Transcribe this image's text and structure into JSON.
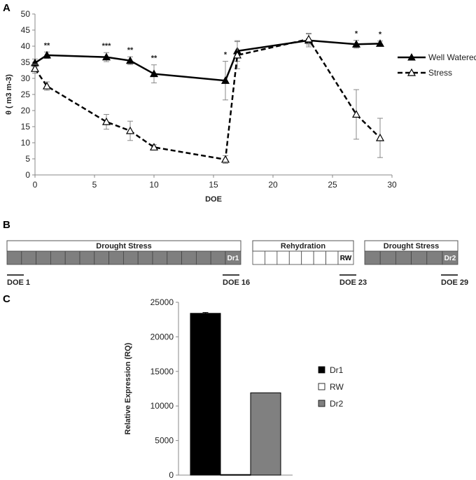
{
  "panel_labels": [
    "A",
    "B",
    "C"
  ],
  "chart_data": [
    {
      "type": "line",
      "panel": "A",
      "xlabel": "DOE",
      "ylabel": "θ ( m3 m-3)",
      "xlim": [
        0,
        30
      ],
      "ylim": [
        0,
        50
      ],
      "x_ticks": [
        0,
        5,
        10,
        15,
        20,
        25,
        30
      ],
      "y_ticks": [
        0,
        5,
        10,
        15,
        20,
        25,
        30,
        35,
        40,
        45,
        50
      ],
      "legend_position": "right",
      "series": [
        {
          "name": "Well Watered",
          "style": "solid-filled-triangle",
          "x": [
            0,
            1,
            6,
            8,
            10,
            16,
            17,
            23,
            27,
            29
          ],
          "y": [
            34.8,
            37.2,
            36.6,
            35.5,
            31.4,
            29.3,
            38.5,
            41.8,
            40.6,
            40.8
          ],
          "err": [
            1.2,
            1.0,
            1.4,
            1.2,
            2.8,
            6.0,
            3.2,
            2.0,
            1.2,
            0.8
          ]
        },
        {
          "name": "Stress",
          "style": "dashed-open-triangle",
          "x": [
            0,
            1,
            6,
            8,
            10,
            16,
            17,
            23,
            27,
            29
          ],
          "y": [
            33.0,
            27.6,
            16.5,
            13.7,
            8.6,
            4.8,
            37.2,
            42.2,
            18.8,
            11.5
          ],
          "err": [
            1.4,
            1.3,
            2.3,
            3.0,
            0.8,
            1.2,
            4.2,
            1.8,
            7.7,
            6.1
          ]
        }
      ],
      "annotations": [
        {
          "x": 1,
          "y": 37.2,
          "err": 1.0,
          "text": "**"
        },
        {
          "x": 6,
          "y": 36.6,
          "err": 1.4,
          "text": "***"
        },
        {
          "x": 8,
          "y": 35.5,
          "err": 1.2,
          "text": "**"
        },
        {
          "x": 10,
          "y": 31.4,
          "err": 2.8,
          "text": "**"
        },
        {
          "x": 16,
          "y": 29.3,
          "err": 6.0,
          "text": "*"
        },
        {
          "x": 27,
          "y": 40.6,
          "err": 1.2,
          "text": "*"
        },
        {
          "x": 29,
          "y": 40.8,
          "err": 0.8,
          "text": "*"
        }
      ]
    },
    {
      "type": "bar",
      "panel": "C",
      "title": "",
      "xlabel": "",
      "ylabel": "Relative Expression (RQ)",
      "categories": [
        "Dr1",
        "RW",
        "Dr2"
      ],
      "values": [
        23400,
        80,
        11900
      ],
      "err": [
        120,
        0,
        0
      ],
      "colors": [
        "#000000",
        "#ffffff",
        "#808080"
      ],
      "ylim": [
        0,
        25000
      ],
      "y_ticks": [
        0,
        5000,
        10000,
        15000,
        20000,
        25000
      ],
      "legend": [
        "Dr1",
        "RW",
        "Dr2"
      ],
      "legend_position": "right"
    }
  ],
  "timeline": {
    "stages": [
      {
        "label": "Drought Stress",
        "sample": "Dr1",
        "cells": 15,
        "fill": "#7f7f7f",
        "tag_bg": "#7f7f7f",
        "tag_color": "#ffffff"
      },
      {
        "label": "Rehydration",
        "sample": "RW",
        "cells": 7,
        "fill": "#ffffff",
        "tag_bg": "#ffffff",
        "tag_color": "#000000"
      },
      {
        "label": "Drought Stress",
        "sample": "Dr2",
        "cells": 5,
        "fill": "#7f7f7f",
        "tag_bg": "#7f7f7f",
        "tag_color": "#ffffff"
      }
    ],
    "doe_markers": [
      "DOE 1",
      "DOE 16",
      "DOE 23",
      "DOE 29"
    ]
  }
}
